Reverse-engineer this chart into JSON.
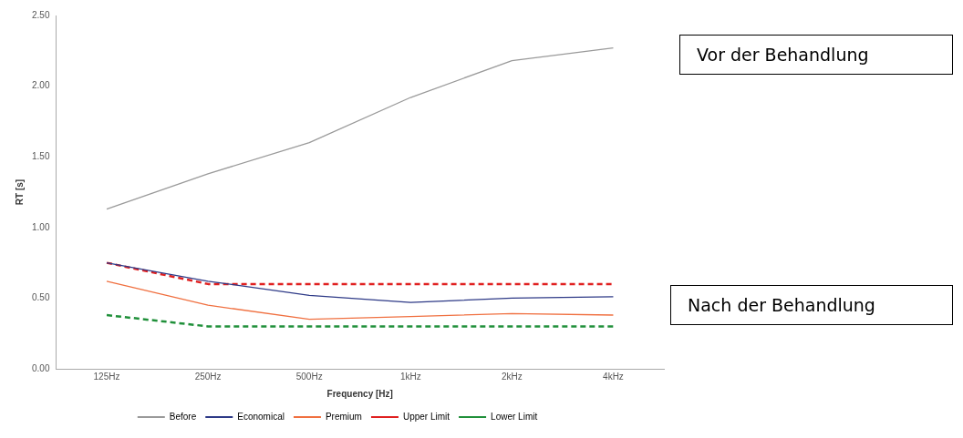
{
  "chart_data": {
    "type": "line",
    "xlabel": "Frequency [Hz]",
    "ylabel": "RT [s]",
    "categories": [
      "125Hz",
      "250Hz",
      "500Hz",
      "1kHz",
      "2kHz",
      "4kHz"
    ],
    "series": [
      {
        "name": "Before",
        "color": "#9a9a9a",
        "values": [
          1.13,
          1.38,
          1.6,
          1.92,
          2.18,
          2.27
        ]
      },
      {
        "name": "Economical",
        "color": "#2e3a87",
        "values": [
          0.75,
          0.62,
          0.52,
          0.47,
          0.5,
          0.51
        ]
      },
      {
        "name": "Premium",
        "color": "#f07040",
        "values": [
          0.62,
          0.45,
          0.35,
          0.37,
          0.39,
          0.38
        ]
      },
      {
        "name": "Upper Limit",
        "color": "#e02020",
        "line_style": "dashed",
        "values": [
          0.75,
          0.6,
          0.6,
          0.6,
          0.6,
          0.6
        ]
      },
      {
        "name": "Lower Limit",
        "color": "#20903a",
        "line_style": "dashed",
        "values": [
          0.38,
          0.3,
          0.3,
          0.3,
          0.3,
          0.3
        ]
      }
    ],
    "ylim": [
      0,
      2.5
    ],
    "yticks": [
      {
        "value": 0,
        "label": "0.00"
      },
      {
        "value": 0.5,
        "label": "0.50"
      },
      {
        "value": 1,
        "label": "1.00"
      },
      {
        "value": 1.5,
        "label": "1.50"
      },
      {
        "value": 2,
        "label": "2.00"
      },
      {
        "value": 2.5,
        "label": "2.50"
      }
    ],
    "grid": false,
    "legend": "bottom",
    "marker": "none",
    "annotations": [
      "Vor der Behandlung",
      "Nach der Behandlung"
    ]
  }
}
